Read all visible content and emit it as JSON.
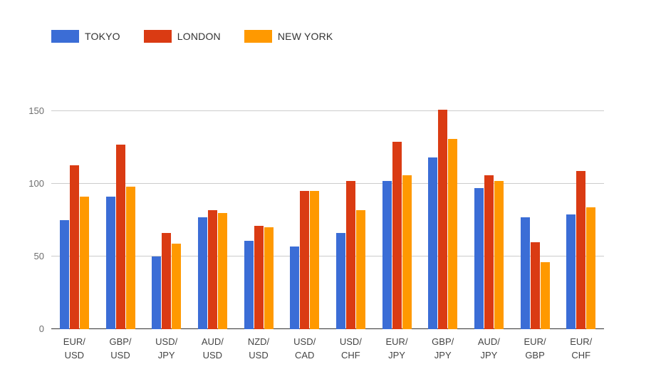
{
  "chart_data": {
    "type": "bar",
    "title": "",
    "xlabel": "",
    "ylabel": "",
    "categories": [
      "EUR/USD",
      "GBP/USD",
      "USD/JPY",
      "AUD/USD",
      "NZD/USD",
      "USD/CAD",
      "USD/CHF",
      "EUR/JPY",
      "GBP/JPY",
      "AUD/JPY",
      "EUR/GBP",
      "EUR/CHF"
    ],
    "series": [
      {
        "name": "TOKYO",
        "color": "#3B6DD6",
        "values": [
          75,
          91,
          50,
          77,
          61,
          57,
          66,
          102,
          118,
          97,
          77,
          79
        ]
      },
      {
        "name": "LONDON",
        "color": "#DA3B13",
        "values": [
          113,
          127,
          66,
          82,
          71,
          95,
          102,
          129,
          151,
          106,
          60,
          109
        ]
      },
      {
        "name": "NEW YORK",
        "color": "#FF9900",
        "values": [
          91,
          98,
          59,
          80,
          70,
          95,
          82,
          106,
          131,
          102,
          46,
          84
        ]
      }
    ],
    "ylim": [
      0,
      155
    ],
    "yticks": [
      0,
      50,
      100,
      150
    ],
    "grid": true,
    "legend_position": "top-left",
    "gridline_color": "#cccccc",
    "baseline_color": "#333333"
  }
}
